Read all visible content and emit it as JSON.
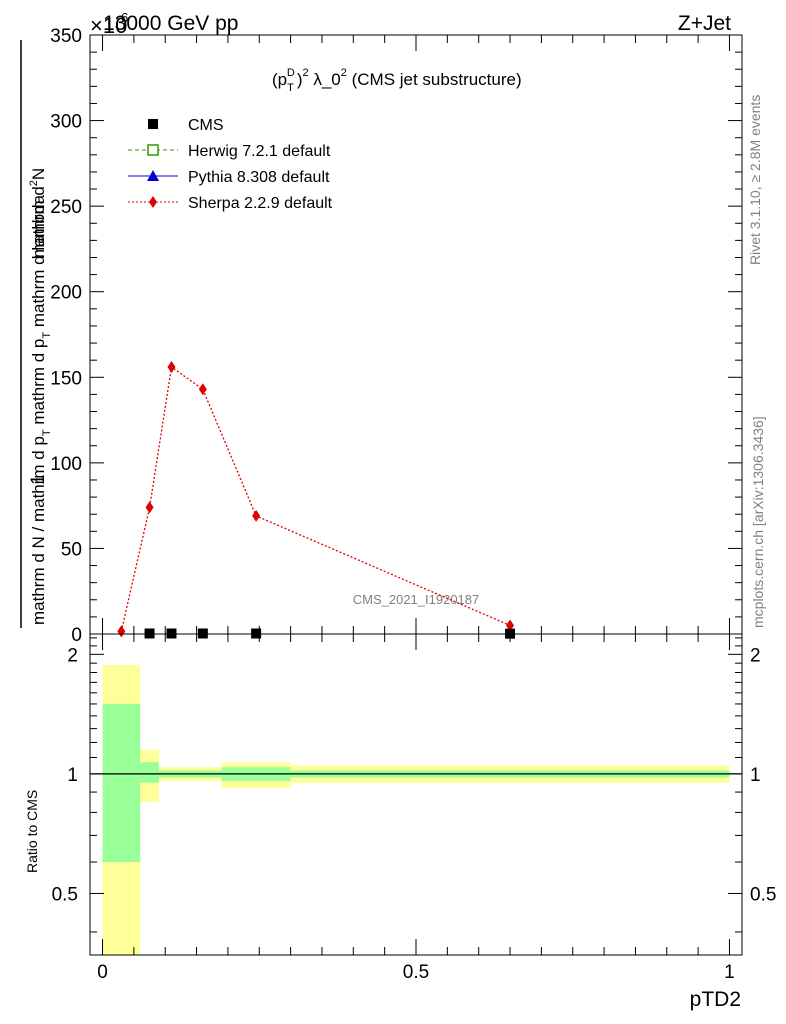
{
  "header": {
    "left": "13000 GeV pp",
    "right": "Z+Jet",
    "exponent": "×10",
    "exponent_power": "6"
  },
  "plot_title": {
    "a": "(p",
    "a_sup": "D",
    "a_sub": "T",
    "b": ")",
    "b_sup": "2",
    "c": " λ_0",
    "c_sup": "2",
    "d": " (CMS jet substructure)"
  },
  "side_labels": {
    "rivet": "Rivet 3.1.10, ≥ 2.8M events",
    "mcplots": "mcplots.cern.ch [arXiv:1306.3436]"
  },
  "watermark": "CMS_2021_I1920187",
  "ylabel_main": {
    "numerator": "mathrm d",
    "numerator_sup": "2",
    "numerator_end": "N",
    "one": "1",
    "den_a": "mathrm d N / mathrm d p",
    "den_a_sub": "T",
    "den_b": " mathrm d p",
    "den_b_sub": "T",
    "den_c": " mathrm d lambda"
  },
  "ylabel_ratio": "Ratio to CMS",
  "xlabel": "pTD2",
  "chart_data": [
    {
      "type": "line",
      "title": "(pT^D)^2 λ_0^2 (CMS jet substructure)",
      "ylabel": "1/(mathrm d N / mathrm d pT) mathrm d^2N / mathrm d pT mathrm d lambda",
      "y_scale_factor": 1000000,
      "xlim": [
        -0.02,
        1.02
      ],
      "ylim": [
        0,
        350
      ],
      "yticks": [
        0,
        50,
        100,
        150,
        200,
        250,
        300,
        350
      ],
      "ytick_labels": [
        "0",
        "50",
        "100",
        "150",
        "200",
        "250",
        "300",
        "350"
      ],
      "legend_position": "top-left",
      "series": [
        {
          "name": "CMS",
          "marker": "square",
          "color": "#000000",
          "x": [
            0.075,
            0.11,
            0.16,
            0.245,
            0.65
          ],
          "y": [
            0.3,
            0.3,
            0.3,
            0.3,
            0.2
          ]
        },
        {
          "name": "Herwig 7.2.1 default",
          "marker": "open-square",
          "line": "dashed",
          "color": "#339900",
          "x": [],
          "y": []
        },
        {
          "name": "Pythia 8.308 default",
          "marker": "triangle",
          "line": "solid",
          "color": "#0000cc",
          "x": [],
          "y": []
        },
        {
          "name": "Sherpa 2.2.9 default",
          "marker": "diamond",
          "line": "dotted",
          "color": "#e00000",
          "x": [
            0.03,
            0.075,
            0.11,
            0.16,
            0.245,
            0.65
          ],
          "y": [
            1.5,
            74,
            156,
            143,
            69,
            5
          ]
        }
      ]
    },
    {
      "type": "line",
      "ylabel": "Ratio to CMS",
      "xlabel": "pTD2",
      "xlim": [
        -0.02,
        1.02
      ],
      "ylim": [
        0.35,
        2.25
      ],
      "yticks": [
        0.5,
        1,
        2
      ],
      "ytick_labels": [
        "0.5",
        "1",
        "2"
      ],
      "xticks": [
        0,
        0.5,
        1
      ],
      "xtick_labels": [
        "0",
        "0.5",
        "1"
      ],
      "reference_line": 1,
      "bands": [
        {
          "x0": 0.0,
          "x1": 0.06,
          "yellow": [
            0.35,
            1.88
          ],
          "green": [
            0.6,
            1.5
          ]
        },
        {
          "x0": 0.06,
          "x1": 0.09,
          "yellow": [
            0.85,
            1.15
          ],
          "green": [
            0.95,
            1.07
          ]
        },
        {
          "x0": 0.09,
          "x1": 0.19,
          "yellow": [
            0.96,
            1.04
          ],
          "green": [
            0.98,
            1.02
          ]
        },
        {
          "x0": 0.19,
          "x1": 0.3,
          "yellow": [
            0.92,
            1.07
          ],
          "green": [
            0.96,
            1.04
          ]
        },
        {
          "x0": 0.3,
          "x1": 1.0,
          "yellow": [
            0.95,
            1.05
          ],
          "green": [
            0.98,
            1.02
          ]
        }
      ],
      "colors": {
        "yellow": "#ffff99",
        "green": "#99ff99",
        "sherpa": "#e00000"
      }
    }
  ]
}
